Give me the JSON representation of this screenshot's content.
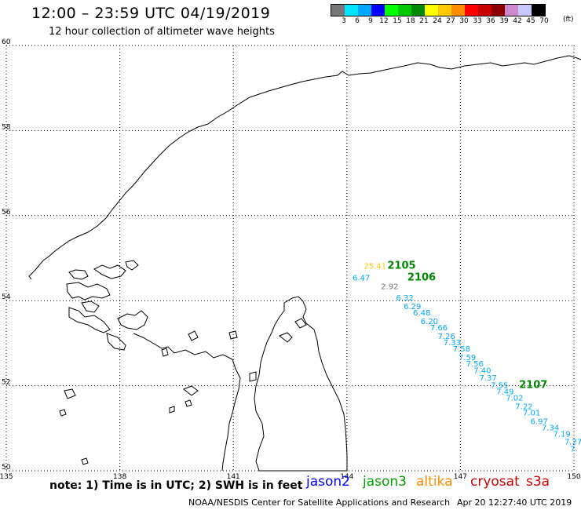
{
  "header": {
    "title": "12:00 – 23:59 UTC 04/19/2019",
    "subtitle": "12 hour collection of altimeter wave heights"
  },
  "legend": {
    "unit": "(ft)",
    "bins": [
      {
        "label": "3",
        "color": "#777777"
      },
      {
        "label": "6",
        "color": "#00e5ff"
      },
      {
        "label": "9",
        "color": "#00a8ff"
      },
      {
        "label": "12",
        "color": "#0000ff"
      },
      {
        "label": "15",
        "color": "#00ff00"
      },
      {
        "label": "18",
        "color": "#00c800"
      },
      {
        "label": "21",
        "color": "#008800"
      },
      {
        "label": "24",
        "color": "#ffff00"
      },
      {
        "label": "27",
        "color": "#ffc800"
      },
      {
        "label": "30",
        "color": "#ff8c00"
      },
      {
        "label": "33",
        "color": "#ff0000"
      },
      {
        "label": "36",
        "color": "#c80000"
      },
      {
        "label": "39",
        "color": "#8b0000"
      },
      {
        "label": "42",
        "color": "#cc88cc"
      },
      {
        "label": "45",
        "color": "#c8c8ff"
      },
      {
        "label": "70",
        "color": "#000000"
      }
    ]
  },
  "map": {
    "lon_range": [
      135,
      150
    ],
    "lat_range": [
      50,
      60
    ],
    "lon_ticks": [
      "135",
      "138",
      "141",
      "144",
      "147",
      "150"
    ],
    "lat_ticks": [
      "50",
      "52",
      "54",
      "56",
      "58",
      "60"
    ],
    "grid": true
  },
  "observations": [
    {
      "text": "25.41",
      "lon": 144.45,
      "lat": 54.75,
      "color": "#ffc800",
      "size": 10
    },
    {
      "text": "2105",
      "lon": 145.07,
      "lat": 54.75,
      "color": "#008800",
      "size": 13
    },
    {
      "text": "6.47",
      "lon": 144.15,
      "lat": 54.47,
      "color": "#00a8ff",
      "size": 10
    },
    {
      "text": "2106",
      "lon": 145.6,
      "lat": 54.47,
      "color": "#008800",
      "size": 13
    },
    {
      "text": "2.92",
      "lon": 144.9,
      "lat": 54.27,
      "color": "#777777",
      "size": 10
    },
    {
      "text": "6.32",
      "lon": 145.3,
      "lat": 54.0,
      "color": "#00a8ff",
      "size": 10
    },
    {
      "text": "6.29",
      "lon": 145.5,
      "lat": 53.8,
      "color": "#00a8ff",
      "size": 10
    },
    {
      "text": "6.48",
      "lon": 145.75,
      "lat": 53.65,
      "color": "#00a8ff",
      "size": 10
    },
    {
      "text": "6.20",
      "lon": 145.95,
      "lat": 53.45,
      "color": "#00a8ff",
      "size": 10
    },
    {
      "text": "7.66",
      "lon": 146.2,
      "lat": 53.3,
      "color": "#00a8ff",
      "size": 10
    },
    {
      "text": "7.26",
      "lon": 146.4,
      "lat": 53.1,
      "color": "#00a8ff",
      "size": 10
    },
    {
      "text": "7.33",
      "lon": 146.55,
      "lat": 52.95,
      "color": "#00a8ff",
      "size": 10
    },
    {
      "text": "7.58",
      "lon": 146.8,
      "lat": 52.8,
      "color": "#00a8ff",
      "size": 10
    },
    {
      "text": "7.59",
      "lon": 146.95,
      "lat": 52.6,
      "color": "#00a8ff",
      "size": 10
    },
    {
      "text": "7.56",
      "lon": 147.15,
      "lat": 52.45,
      "color": "#00a8ff",
      "size": 10
    },
    {
      "text": "7.40",
      "lon": 147.35,
      "lat": 52.3,
      "color": "#00a8ff",
      "size": 10
    },
    {
      "text": "7.37",
      "lon": 147.5,
      "lat": 52.12,
      "color": "#00a8ff",
      "size": 10
    },
    {
      "text": "7.55",
      "lon": 147.8,
      "lat": 51.95,
      "color": "#00a8ff",
      "size": 10
    },
    {
      "text": "2107",
      "lon": 148.55,
      "lat": 51.95,
      "color": "#008800",
      "size": 13
    },
    {
      "text": "7.49",
      "lon": 147.95,
      "lat": 51.8,
      "color": "#00a8ff",
      "size": 10
    },
    {
      "text": "7.02",
      "lon": 148.2,
      "lat": 51.65,
      "color": "#00a8ff",
      "size": 10
    },
    {
      "text": "7.22",
      "lon": 148.45,
      "lat": 51.45,
      "color": "#00a8ff",
      "size": 10
    },
    {
      "text": "7.01",
      "lon": 148.65,
      "lat": 51.3,
      "color": "#00a8ff",
      "size": 10
    },
    {
      "text": "6.97",
      "lon": 148.85,
      "lat": 51.1,
      "color": "#00a8ff",
      "size": 10
    },
    {
      "text": "7.34",
      "lon": 149.15,
      "lat": 50.95,
      "color": "#00a8ff",
      "size": 10
    },
    {
      "text": "7.19",
      "lon": 149.45,
      "lat": 50.8,
      "color": "#00a8ff",
      "size": 10
    },
    {
      "text": "7.27",
      "lon": 149.75,
      "lat": 50.62,
      "color": "#00a8ff",
      "size": 10
    },
    {
      "text": "7.",
      "lon": 149.9,
      "lat": 50.45,
      "color": "#00a8ff",
      "size": 10
    }
  ],
  "footer": {
    "note": "note: 1) Time is in UTC; 2) SWH is in feet",
    "satellites": [
      {
        "name": "jason2",
        "color": "#0000ff"
      },
      {
        "name": "jason3",
        "color": "#00a000"
      },
      {
        "name": "altika",
        "color": "#ff8c00"
      },
      {
        "name": "cryosat",
        "color": "#cc0000"
      },
      {
        "name": "s3a",
        "color": "#cc0000"
      }
    ],
    "credit": "NOAA/NESDIS Center for Satellite Applications and Research",
    "timestamp": "Apr 20 12:27:40 UTC 2019"
  }
}
